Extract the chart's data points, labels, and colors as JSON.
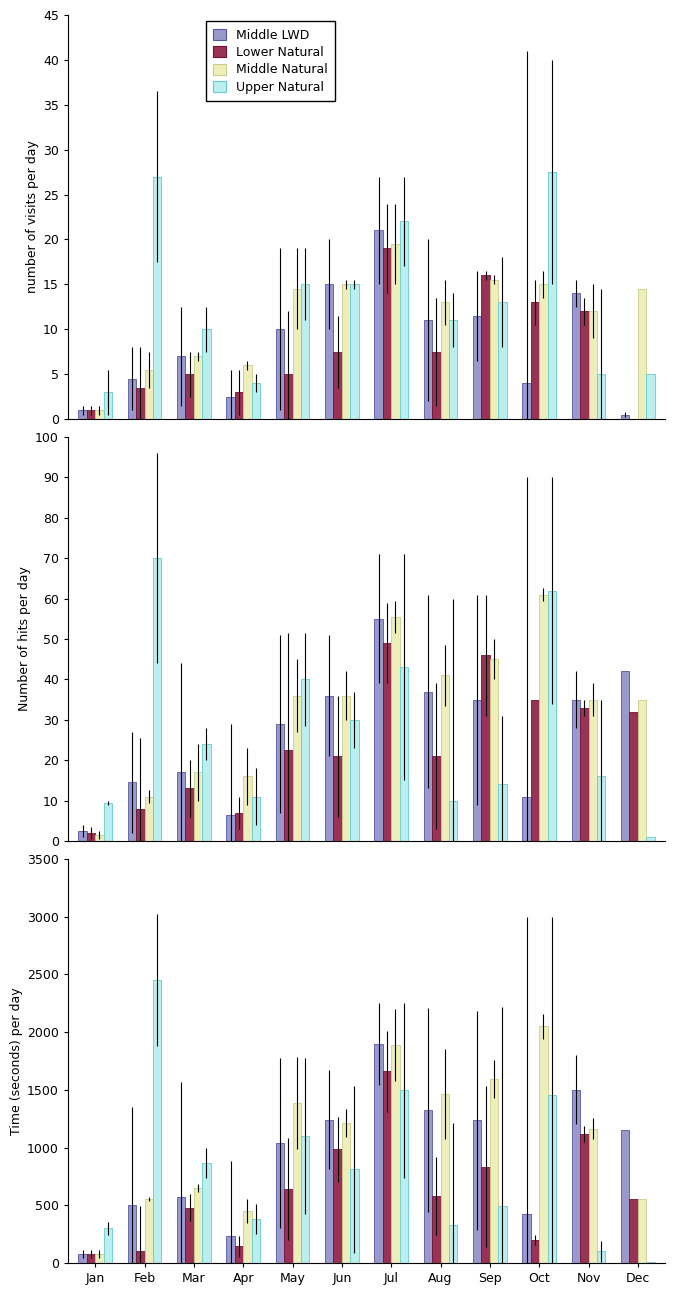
{
  "months": [
    "Jan",
    "Feb",
    "Mar",
    "Apr",
    "May",
    "Jun",
    "Jul",
    "Aug",
    "Sep",
    "Oct",
    "Nov",
    "Dec"
  ],
  "series_labels": [
    "Middle LWD",
    "Lower Natural",
    "Middle Natural",
    "Upper Natural"
  ],
  "colors": [
    "#9999cc",
    "#993355",
    "#eeeebb",
    "#bbeeee"
  ],
  "edge_colors": [
    "#5555aa",
    "#771133",
    "#cccc88",
    "#66cccc"
  ],
  "visits_mean": [
    [
      1.0,
      4.5,
      7.0,
      2.5,
      10.0,
      15.0,
      21.0,
      11.0,
      11.5,
      4.0,
      14.0,
      0.5
    ],
    [
      1.0,
      3.5,
      5.0,
      3.0,
      5.0,
      7.5,
      19.0,
      7.5,
      16.0,
      13.0,
      12.0,
      0.0
    ],
    [
      1.0,
      5.5,
      7.0,
      6.0,
      14.5,
      15.0,
      19.5,
      13.0,
      15.5,
      15.0,
      12.0,
      14.5
    ],
    [
      3.0,
      27.0,
      10.0,
      4.0,
      15.0,
      15.0,
      22.0,
      11.0,
      13.0,
      27.5,
      5.0,
      5.0
    ]
  ],
  "visits_se": [
    [
      0.5,
      3.5,
      5.5,
      3.0,
      9.0,
      5.0,
      6.0,
      9.0,
      5.0,
      37.0,
      1.5,
      0.3
    ],
    [
      0.5,
      4.5,
      2.5,
      2.5,
      7.0,
      4.0,
      5.0,
      6.0,
      0.5,
      2.5,
      1.5,
      0.0
    ],
    [
      0.5,
      2.0,
      0.5,
      0.5,
      4.5,
      0.5,
      4.5,
      2.5,
      0.5,
      1.5,
      3.0,
      0.0
    ],
    [
      2.5,
      9.5,
      2.5,
      1.0,
      4.0,
      0.5,
      5.0,
      3.0,
      5.0,
      12.5,
      9.5,
      0.0
    ]
  ],
  "hits_mean": [
    [
      2.5,
      14.5,
      17.0,
      6.5,
      29.0,
      36.0,
      55.0,
      37.0,
      35.0,
      11.0,
      35.0,
      42.0
    ],
    [
      2.0,
      8.0,
      13.0,
      7.0,
      22.5,
      21.0,
      49.0,
      21.0,
      46.0,
      35.0,
      33.0,
      32.0
    ],
    [
      1.5,
      11.0,
      17.0,
      16.0,
      36.0,
      36.0,
      55.5,
      41.0,
      45.0,
      61.0,
      35.0,
      35.0
    ],
    [
      9.5,
      70.0,
      24.0,
      11.0,
      40.0,
      30.0,
      43.0,
      10.0,
      14.0,
      62.0,
      16.0,
      1.0
    ]
  ],
  "hits_se": [
    [
      1.5,
      12.5,
      27.0,
      22.5,
      22.0,
      15.0,
      16.0,
      24.0,
      26.0,
      79.0,
      7.0,
      0.0
    ],
    [
      1.5,
      17.5,
      7.0,
      4.0,
      29.0,
      15.0,
      10.0,
      18.0,
      15.0,
      0.0,
      2.0,
      0.0
    ],
    [
      1.0,
      1.5,
      7.0,
      7.0,
      9.0,
      6.0,
      4.0,
      7.5,
      5.0,
      1.5,
      4.0,
      0.0
    ],
    [
      0.5,
      26.0,
      4.0,
      7.0,
      11.5,
      7.0,
      28.0,
      50.0,
      17.0,
      28.0,
      19.0,
      0.0
    ]
  ],
  "time_mean": [
    [
      75.0,
      500.0,
      575.0,
      235.0,
      1040.0,
      1240.0,
      1900.0,
      1325.0,
      1235.0,
      425.0,
      1500.0,
      1150.0
    ],
    [
      75.0,
      100.0,
      480.0,
      145.0,
      640.0,
      985.0,
      1660.0,
      580.0,
      835.0,
      200.0,
      1120.0,
      550.0
    ],
    [
      75.0,
      555.0,
      650.0,
      450.0,
      1385.0,
      1215.0,
      1890.0,
      1465.0,
      1590.0,
      2050.0,
      1165.0,
      550.0
    ],
    [
      300.0,
      2450.0,
      865.0,
      380.0,
      1100.0,
      810.0,
      1495.0,
      325.0,
      490.0,
      1455.0,
      100.0,
      5.0
    ]
  ],
  "time_se": [
    [
      35.0,
      850.0,
      990.0,
      650.0,
      740.0,
      430.0,
      355.0,
      880.0,
      950.0,
      2575.0,
      300.0,
      0.0
    ],
    [
      35.0,
      395.0,
      120.0,
      90.0,
      440.0,
      280.0,
      350.0,
      340.0,
      695.0,
      45.0,
      70.0,
      0.0
    ],
    [
      35.0,
      15.0,
      35.0,
      100.0,
      400.0,
      120.0,
      310.0,
      390.0,
      165.0,
      110.0,
      95.0,
      0.0
    ],
    [
      55.0,
      570.0,
      130.0,
      130.0,
      680.0,
      720.0,
      755.0,
      885.0,
      1725.0,
      1545.0,
      90.0,
      0.0
    ]
  ],
  "visits_ylim": [
    0,
    45
  ],
  "visits_yticks": [
    0,
    5,
    10,
    15,
    20,
    25,
    30,
    35,
    40,
    45
  ],
  "visits_ylabel": "number of visits per day",
  "hits_ylim": [
    0,
    100
  ],
  "hits_yticks": [
    0,
    10,
    20,
    30,
    40,
    50,
    60,
    70,
    80,
    90,
    100
  ],
  "hits_ylabel": "Number of hits per day",
  "time_ylim": [
    0,
    3500
  ],
  "time_yticks": [
    0,
    500,
    1000,
    1500,
    2000,
    2500,
    3000,
    3500
  ],
  "time_ylabel": "Time (seconds) per day"
}
